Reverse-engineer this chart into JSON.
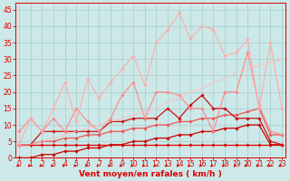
{
  "title": "",
  "xlabel": "Vent moyen/en rafales ( km/h )",
  "background_color": "#cce8e8",
  "grid_color": "#aacccc",
  "x": [
    0,
    1,
    2,
    3,
    4,
    5,
    6,
    7,
    8,
    9,
    10,
    11,
    12,
    13,
    14,
    15,
    16,
    17,
    18,
    19,
    20,
    21,
    22,
    23
  ],
  "series": [
    {
      "name": "flat_red",
      "color": "#dd0000",
      "alpha": 1.0,
      "linewidth": 0.9,
      "marker": "D",
      "markersize": 1.8,
      "y": [
        4,
        4,
        4,
        4,
        4,
        4,
        4,
        4,
        4,
        4,
        4,
        4,
        4,
        4,
        4,
        4,
        4,
        4,
        4,
        4,
        4,
        4,
        4,
        4
      ]
    },
    {
      "name": "rising_dark",
      "color": "#cc0000",
      "alpha": 1.0,
      "linewidth": 0.9,
      "marker": "D",
      "markersize": 1.8,
      "y": [
        0,
        0,
        1,
        1,
        2,
        2,
        3,
        3,
        4,
        4,
        5,
        5,
        6,
        6,
        7,
        7,
        8,
        8,
        9,
        9,
        10,
        10,
        4,
        4
      ]
    },
    {
      "name": "rising_medium",
      "color": "#ee5555",
      "alpha": 1.0,
      "linewidth": 0.9,
      "marker": "D",
      "markersize": 1.8,
      "y": [
        4,
        4,
        5,
        5,
        6,
        6,
        7,
        7,
        8,
        8,
        9,
        9,
        10,
        10,
        11,
        11,
        12,
        12,
        13,
        13,
        14,
        15,
        7,
        7
      ]
    },
    {
      "name": "jagged_dark",
      "color": "#cc1111",
      "alpha": 1.0,
      "linewidth": 0.9,
      "marker": "D",
      "markersize": 1.8,
      "y": [
        4,
        4,
        8,
        8,
        8,
        8,
        8,
        8,
        11,
        11,
        12,
        12,
        12,
        15,
        12,
        16,
        19,
        15,
        15,
        12,
        12,
        12,
        5,
        4
      ]
    },
    {
      "name": "jagged_medium_pink",
      "color": "#ff8888",
      "alpha": 0.9,
      "linewidth": 0.9,
      "marker": "D",
      "markersize": 1.8,
      "y": [
        8,
        12,
        8,
        12,
        8,
        15,
        11,
        8,
        12,
        19,
        23,
        12,
        20,
        20,
        19,
        15,
        15,
        8,
        20,
        20,
        32,
        16,
        8,
        7
      ]
    },
    {
      "name": "light_pink_top",
      "color": "#ffaaaa",
      "alpha": 0.85,
      "linewidth": 0.9,
      "marker": "D",
      "markersize": 1.8,
      "y": [
        4,
        12,
        8,
        15,
        23,
        11,
        24,
        18,
        23,
        27,
        31,
        22,
        35,
        39,
        44,
        36,
        40,
        39,
        31,
        32,
        36,
        15,
        35,
        15
      ]
    },
    {
      "name": "diagonal_light",
      "color": "#ffbbbb",
      "alpha": 0.75,
      "linewidth": 0.9,
      "marker": null,
      "markersize": 0,
      "y": [
        4,
        4,
        5,
        6,
        7,
        8,
        9,
        10,
        11,
        12,
        13,
        14,
        15,
        17,
        18,
        20,
        21,
        23,
        24,
        26,
        27,
        28,
        29,
        30
      ]
    }
  ],
  "wind_arrows": true,
  "arrow_color": "#dd0000",
  "xlim": [
    0,
    23
  ],
  "ylim": [
    0,
    47
  ],
  "yticks": [
    0,
    5,
    10,
    15,
    20,
    25,
    30,
    35,
    40,
    45
  ],
  "xticks": [
    0,
    1,
    2,
    3,
    4,
    5,
    6,
    7,
    8,
    9,
    10,
    11,
    12,
    13,
    14,
    15,
    16,
    17,
    18,
    19,
    20,
    21,
    22,
    23
  ],
  "tick_color": "#dd0000",
  "label_color": "#dd0000",
  "label_fontsize": 6.5,
  "tick_fontsize": 5.5
}
